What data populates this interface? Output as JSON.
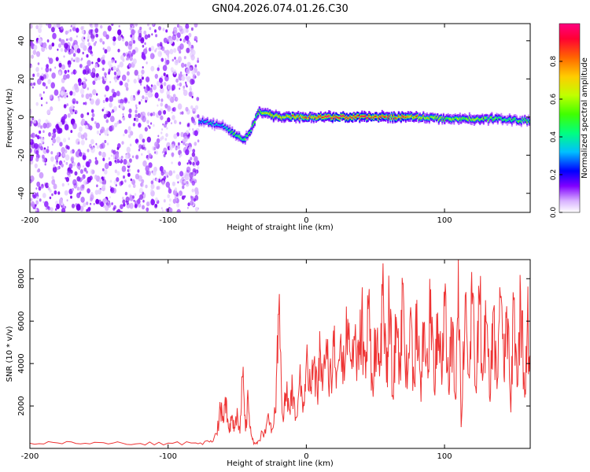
{
  "figure_title": "GN04.2026.074.01.26.C30",
  "chart_data": [
    {
      "type": "heatmap",
      "title": "GN04.2026.074.01.26.C30",
      "xlabel": "Height of straight line (km)",
      "ylabel": "Frequency (Hz)",
      "xlim": [
        -200,
        162
      ],
      "ylim": [
        -50,
        49
      ],
      "xticks": [
        -200,
        -100,
        0,
        100
      ],
      "yticks": [
        -40,
        -20,
        0,
        20,
        40
      ],
      "grid": false,
      "noise_region_x": [
        -200,
        -78
      ],
      "signal_band": {
        "x": [
          -78,
          -70,
          -60,
          -55,
          -50,
          -45,
          -40,
          -35,
          -30,
          -25,
          -20,
          -10,
          0,
          20,
          40,
          60,
          80,
          100,
          120,
          140,
          162
        ],
        "freq": [
          -2,
          -3,
          -5,
          -8,
          -10,
          -12,
          -6,
          3,
          2,
          1,
          0,
          0,
          0,
          0,
          0,
          0,
          0,
          -1,
          -1,
          -1,
          -2
        ],
        "amplitude": [
          0.3,
          0.4,
          0.35,
          0.45,
          0.5,
          0.55,
          0.5,
          0.6,
          0.7,
          0.7,
          0.75,
          0.8,
          0.85,
          0.95,
          0.9,
          0.85,
          0.8,
          0.55,
          0.6,
          0.5,
          0.5
        ]
      },
      "colorbar": {
        "label": "Normalized spectral amplitude",
        "range": [
          0.0,
          1.0
        ],
        "ticks": [
          "0.0",
          "0.2",
          "0.4",
          "0.6",
          "0.8"
        ],
        "colors": [
          "#ffffff",
          "#d9b3ff",
          "#8000ff",
          "#0000ff",
          "#00c0ff",
          "#00ff80",
          "#40ff00",
          "#c0ff00",
          "#ffcc00",
          "#ff6600",
          "#ff0033",
          "#ff0080"
        ]
      }
    },
    {
      "type": "line",
      "xlabel": "Height of straight line (km)",
      "ylabel": "SNR (10 * v/v)",
      "xlim": [
        -200,
        162
      ],
      "ylim": [
        0,
        8900
      ],
      "xticks": [
        -200,
        -100,
        0,
        100
      ],
      "yticks": [
        2000,
        4000,
        6000,
        8000
      ],
      "grid": false,
      "series": [
        {
          "name": "SNR",
          "color": "#ee3333",
          "x": [
            -200,
            -180,
            -160,
            -140,
            -120,
            -100,
            -80,
            -70,
            -65,
            -62,
            -60,
            -58,
            -56,
            -54,
            -52,
            -50,
            -48,
            -46,
            -44,
            -42,
            -40,
            -38,
            -35,
            -30,
            -27,
            -25,
            -22,
            -20,
            -17,
            -15,
            -12,
            -10,
            -8,
            -5,
            -2,
            0,
            3,
            5,
            8,
            10,
            12,
            15,
            18,
            20,
            22,
            25,
            28,
            30,
            32,
            35,
            38,
            40,
            43,
            45,
            48,
            50,
            53,
            55,
            58,
            60,
            63,
            65,
            68,
            70,
            73,
            75,
            78,
            80,
            83,
            85,
            88,
            90,
            93,
            95,
            98,
            100,
            103,
            105,
            108,
            110,
            112,
            115,
            118,
            120,
            123,
            125,
            128,
            130,
            133,
            135,
            138,
            140,
            143,
            145,
            148,
            150,
            153,
            155,
            158,
            160,
            162
          ],
          "y": [
            250,
            260,
            240,
            250,
            230,
            250,
            260,
            300,
            700,
            1800,
            1200,
            2400,
            900,
            1500,
            1000,
            1900,
            700,
            3400,
            800,
            2300,
            700,
            200,
            350,
            900,
            1300,
            900,
            1700,
            6300,
            1500,
            2600,
            1800,
            2900,
            1300,
            3100,
            2200,
            4100,
            2700,
            3900,
            2500,
            4700,
            3100,
            4200,
            3300,
            4800,
            3600,
            5400,
            3900,
            6100,
            4100,
            5100,
            3700,
            6300,
            3300,
            6800,
            2900,
            5600,
            3400,
            7200,
            3100,
            6700,
            2300,
            6200,
            3600,
            7800,
            2800,
            6100,
            3100,
            7000,
            2200,
            5900,
            3300,
            7500,
            2500,
            6400,
            3000,
            6700,
            2700,
            6100,
            2300,
            8900,
            1000,
            7200,
            3300,
            6800,
            2600,
            7300,
            3600,
            6000,
            2200,
            6400,
            2800,
            7600,
            3400,
            6700,
            1700,
            7000,
            3000,
            7400,
            2400,
            6200,
            3700
          ]
        }
      ]
    }
  ]
}
